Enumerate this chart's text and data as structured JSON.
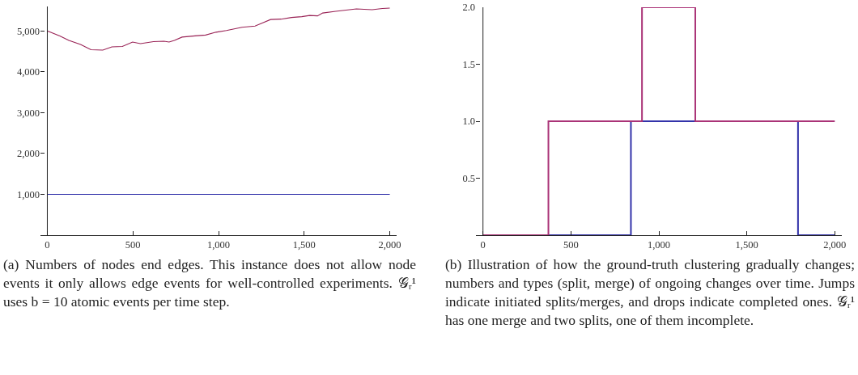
{
  "chart_data": [
    {
      "type": "line",
      "annotations": [
        "(a) Numbers of nodes end edges. This instance does not allow node events it only allows edge events for well-controlled experiments. 𝒢ᵣ¹ uses b = 10 atomic events per time step."
      ],
      "xlim": [
        -40,
        2040
      ],
      "ylim": [
        0,
        5600
      ],
      "xticks": [
        {
          "value": 0,
          "label": "0"
        },
        500,
        {
          "value": 1000,
          "label": "1,000"
        },
        {
          "value": 1500,
          "label": "1,500"
        },
        {
          "value": 2000,
          "label": "2,000"
        }
      ],
      "yticks": [
        {
          "value": 1000,
          "label": "1,000"
        },
        {
          "value": 2000,
          "label": "2,000"
        },
        {
          "value": 3000,
          "label": "3,000"
        },
        {
          "value": 4000,
          "label": "4,000"
        },
        {
          "value": 5000,
          "label": "5,000"
        }
      ],
      "grid": false,
      "marker": "none",
      "series": [
        {
          "color": "#3333aa",
          "x": [
            0,
            2000
          ],
          "values": [
            1000,
            1000
          ]
        },
        {
          "color": "#992255",
          "x": [
            0,
            73,
            126,
            194,
            255,
            324,
            377,
            438,
            498,
            544,
            620,
            681,
            711,
            742,
            787,
            863,
            924,
            985,
            1046,
            1137,
            1213,
            1258,
            1304,
            1365,
            1426,
            1486,
            1532,
            1578,
            1608,
            1684,
            1745,
            1805,
            1897,
            1957,
            2000
          ],
          "values": [
            5000,
            4880,
            4770,
            4670,
            4540,
            4530,
            4610,
            4620,
            4730,
            4690,
            4740,
            4750,
            4730,
            4770,
            4850,
            4880,
            4900,
            4970,
            5010,
            5090,
            5120,
            5200,
            5280,
            5290,
            5330,
            5350,
            5380,
            5370,
            5440,
            5480,
            5510,
            5540,
            5520,
            5550,
            5560
          ]
        }
      ]
    },
    {
      "type": "step",
      "annotations": [
        "(b) Illustration of how the ground-truth clustering gradually changes; numbers and types (split, merge) of ongoing changes over time. Jumps indicate initiated splits/merges, and drops indicate completed ones. 𝒢ᵣ¹ has one merge and two splits, one of them incomplete."
      ],
      "xlim": [
        -40,
        2040
      ],
      "ylim": [
        0,
        2
      ],
      "xticks": [
        {
          "value": 0,
          "label": "0"
        },
        500,
        {
          "value": 1000,
          "label": "1,000"
        },
        {
          "value": 1500,
          "label": "1,500"
        },
        {
          "value": 2000,
          "label": "2,000"
        }
      ],
      "yticks": [
        0.5,
        {
          "value": 1,
          "label": "1.0"
        },
        1.5,
        {
          "value": 2,
          "label": "2.0"
        }
      ],
      "grid": false,
      "marker": "none",
      "series": [
        {
          "color": "#3333aa",
          "x": [
            0,
            841,
            1791,
            2000
          ],
          "values": [
            0,
            1,
            0,
            0
          ]
        },
        {
          "color": "#aa3377",
          "x": [
            0,
            372,
            904,
            1207,
            2000
          ],
          "values": [
            0,
            1,
            2,
            1,
            1
          ]
        }
      ]
    }
  ]
}
